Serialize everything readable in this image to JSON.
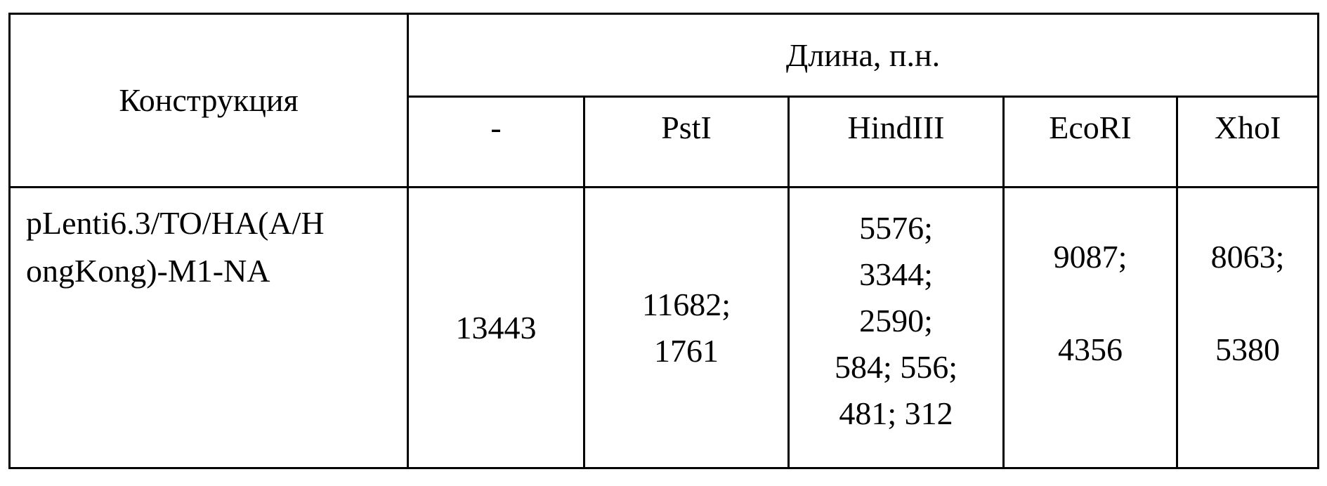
{
  "table": {
    "header": {
      "construct": "Конструкция",
      "length": "Длина, п.н.",
      "enzymes": [
        "-",
        "PstI",
        "HindIII",
        "EcoRI",
        "XhoI"
      ]
    },
    "row": {
      "construct_lines": [
        "pLenti6.3/TO/HA(A/H",
        "ongKong)-M1-NA"
      ],
      "none": [
        "13443"
      ],
      "psti": [
        "11682;",
        "1761"
      ],
      "hindiii": [
        "5576;",
        "3344;",
        "2590;",
        "584; 556;",
        "481; 312"
      ],
      "ecori": [
        "9087;",
        "",
        "4356"
      ],
      "xhoi": [
        "8063;",
        "",
        "5380"
      ]
    }
  }
}
